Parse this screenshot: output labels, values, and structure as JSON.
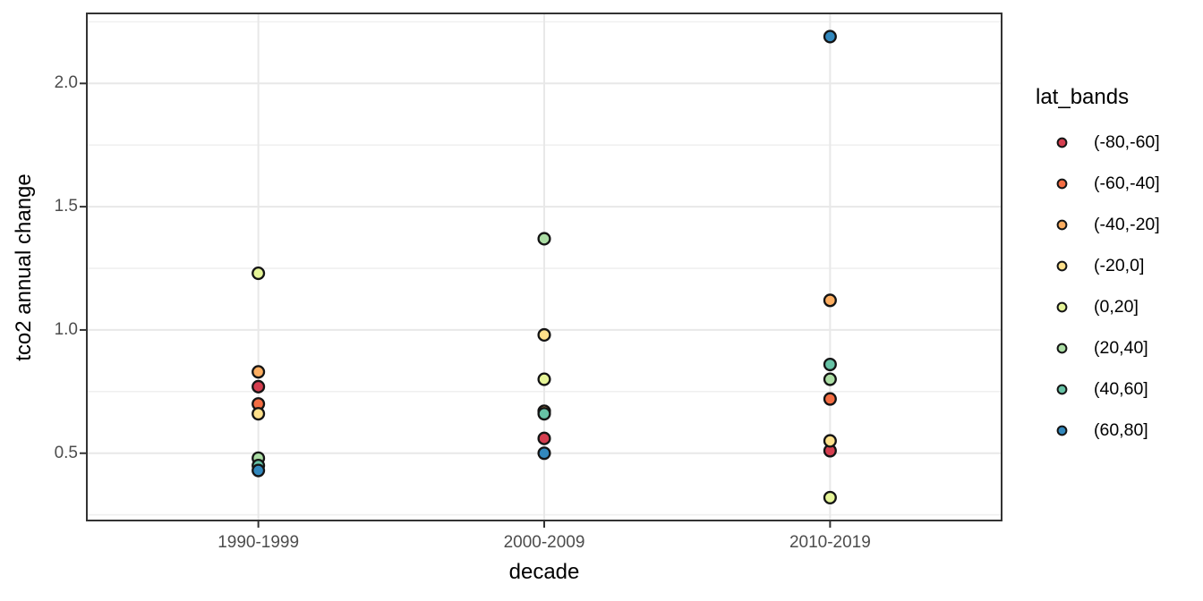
{
  "chart_data": {
    "type": "scatter",
    "title": "",
    "xlabel": "decade",
    "ylabel": "tco2 annual change",
    "legend_title": "lat_bands",
    "legend_position": "right",
    "grid": true,
    "categories": [
      "1990-1999",
      "2000-2009",
      "2010-2019"
    ],
    "ylim": [
      0.227,
      2.284
    ],
    "yticks": [
      0.5,
      1.0,
      1.5,
      2.0
    ],
    "ytick_labels": [
      "0.5",
      "1.0",
      "1.5",
      "2.0"
    ],
    "yticks_minor": [
      0.25,
      0.75,
      1.25,
      1.75,
      2.25
    ],
    "series": [
      {
        "name": "(-80,-60]",
        "color": "#d53e4f",
        "values": [
          0.77,
          0.56,
          0.51
        ]
      },
      {
        "name": "(-60,-40]",
        "color": "#f46d43",
        "values": [
          0.7,
          0.67,
          0.72
        ]
      },
      {
        "name": "(-40,-20]",
        "color": "#fdae61",
        "values": [
          0.83,
          0.67,
          1.12
        ]
      },
      {
        "name": "(-20,0]",
        "color": "#fee08b",
        "values": [
          0.66,
          0.98,
          0.55
        ]
      },
      {
        "name": "(0,20]",
        "color": "#e6f598",
        "values": [
          1.23,
          0.8,
          0.32
        ]
      },
      {
        "name": "(20,40]",
        "color": "#abdda4",
        "values": [
          0.48,
          1.37,
          0.8
        ]
      },
      {
        "name": "(40,60]",
        "color": "#66c2a5",
        "values": [
          0.45,
          0.66,
          0.86
        ]
      },
      {
        "name": "(60,80]",
        "color": "#3288bd",
        "values": [
          0.43,
          0.5,
          2.19
        ]
      }
    ],
    "style": {
      "panel_border_color": "#333333",
      "grid_major_color": "#e8e8e8",
      "grid_minor_color": "#f0f0f0",
      "tick_color": "#333333",
      "tick_label_color": "#4d4d4d",
      "point_stroke_color": "#141414"
    }
  }
}
